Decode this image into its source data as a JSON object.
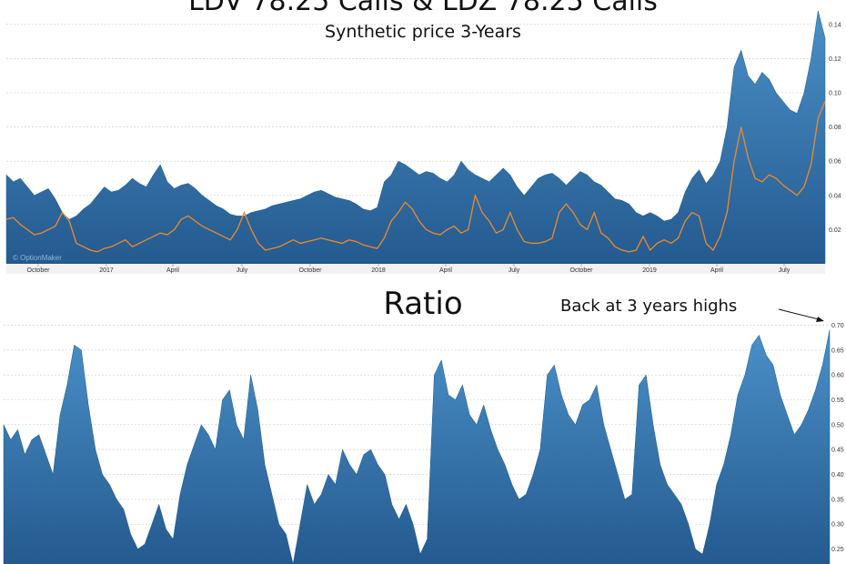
{
  "chart_data": [
    {
      "type": "area",
      "title": "LDV 78.25 Calls & LDZ 78.25 Calls",
      "subtitle": "Synthetic price 3-Years",
      "watermark": "© OptionMaker",
      "x_tick_labels": [
        "October",
        "2017",
        "April",
        "July",
        "October",
        "2018",
        "April",
        "July",
        "October",
        "2019",
        "April",
        "July"
      ],
      "ylim": [
        0,
        0.15
      ],
      "y_ticks": [
        0.02,
        0.04,
        0.06,
        0.08,
        0.1,
        0.12,
        0.14
      ],
      "y_tick_labels": [
        "0.02",
        "0.04",
        "0.06",
        "0.08",
        "0.10",
        "0.12",
        "0.14"
      ],
      "grid": true,
      "colors": {
        "area": "#2f6fa8",
        "line": "#ee8a2a"
      },
      "series": [
        {
          "style": "area",
          "values": [
            0.052,
            0.048,
            0.05,
            0.045,
            0.04,
            0.042,
            0.044,
            0.038,
            0.03,
            0.026,
            0.028,
            0.032,
            0.035,
            0.04,
            0.045,
            0.042,
            0.043,
            0.046,
            0.05,
            0.047,
            0.045,
            0.052,
            0.058,
            0.048,
            0.044,
            0.046,
            0.047,
            0.044,
            0.04,
            0.037,
            0.034,
            0.032,
            0.029,
            0.028,
            0.028,
            0.03,
            0.031,
            0.032,
            0.034,
            0.035,
            0.036,
            0.037,
            0.038,
            0.04,
            0.042,
            0.043,
            0.041,
            0.039,
            0.038,
            0.037,
            0.035,
            0.032,
            0.031,
            0.033,
            0.048,
            0.052,
            0.06,
            0.058,
            0.055,
            0.052,
            0.054,
            0.053,
            0.05,
            0.048,
            0.052,
            0.06,
            0.055,
            0.052,
            0.05,
            0.048,
            0.052,
            0.056,
            0.052,
            0.045,
            0.04,
            0.045,
            0.05,
            0.052,
            0.053,
            0.05,
            0.046,
            0.05,
            0.054,
            0.052,
            0.048,
            0.046,
            0.042,
            0.038,
            0.037,
            0.035,
            0.03,
            0.028,
            0.03,
            0.028,
            0.025,
            0.026,
            0.03,
            0.042,
            0.05,
            0.055,
            0.047,
            0.052,
            0.06,
            0.08,
            0.115,
            0.125,
            0.11,
            0.105,
            0.112,
            0.108,
            0.1,
            0.095,
            0.09,
            0.088,
            0.1,
            0.12,
            0.148,
            0.132
          ]
        },
        {
          "style": "line",
          "values": [
            0.026,
            0.027,
            0.023,
            0.02,
            0.017,
            0.018,
            0.02,
            0.022,
            0.03,
            0.025,
            0.012,
            0.01,
            0.008,
            0.007,
            0.009,
            0.01,
            0.012,
            0.014,
            0.01,
            0.012,
            0.014,
            0.016,
            0.018,
            0.017,
            0.02,
            0.026,
            0.028,
            0.025,
            0.022,
            0.02,
            0.018,
            0.016,
            0.014,
            0.02,
            0.03,
            0.02,
            0.012,
            0.008,
            0.009,
            0.01,
            0.012,
            0.014,
            0.012,
            0.013,
            0.014,
            0.015,
            0.014,
            0.013,
            0.012,
            0.014,
            0.013,
            0.011,
            0.01,
            0.009,
            0.015,
            0.025,
            0.03,
            0.036,
            0.032,
            0.025,
            0.02,
            0.018,
            0.017,
            0.02,
            0.022,
            0.018,
            0.02,
            0.04,
            0.03,
            0.025,
            0.018,
            0.02,
            0.03,
            0.02,
            0.013,
            0.012,
            0.012,
            0.013,
            0.015,
            0.03,
            0.035,
            0.03,
            0.023,
            0.02,
            0.03,
            0.018,
            0.015,
            0.01,
            0.008,
            0.007,
            0.008,
            0.016,
            0.008,
            0.012,
            0.014,
            0.012,
            0.015,
            0.025,
            0.03,
            0.028,
            0.012,
            0.008,
            0.016,
            0.03,
            0.06,
            0.08,
            0.062,
            0.05,
            0.048,
            0.052,
            0.05,
            0.046,
            0.043,
            0.04,
            0.045,
            0.058,
            0.085,
            0.095
          ]
        }
      ]
    },
    {
      "type": "area",
      "title": "Ratio",
      "annotation": "Back at 3 years highs",
      "ylim": [
        0.22,
        0.71
      ],
      "y_ticks": [
        0.25,
        0.3,
        0.35,
        0.4,
        0.45,
        0.5,
        0.55,
        0.6,
        0.65,
        0.7
      ],
      "y_tick_labels": [
        "0.25",
        "0.30",
        "0.35",
        "0.40",
        "0.45",
        "0.50",
        "0.55",
        "0.60",
        "0.65",
        "0.70"
      ],
      "grid": true,
      "colors": {
        "area": "#2f6fa8"
      },
      "series": [
        {
          "style": "area",
          "values": [
            0.5,
            0.47,
            0.49,
            0.44,
            0.47,
            0.48,
            0.44,
            0.4,
            0.52,
            0.58,
            0.66,
            0.65,
            0.54,
            0.45,
            0.4,
            0.38,
            0.35,
            0.33,
            0.28,
            0.25,
            0.26,
            0.3,
            0.34,
            0.29,
            0.27,
            0.36,
            0.42,
            0.46,
            0.5,
            0.48,
            0.45,
            0.55,
            0.57,
            0.5,
            0.47,
            0.6,
            0.53,
            0.42,
            0.36,
            0.3,
            0.28,
            0.22,
            0.3,
            0.38,
            0.34,
            0.36,
            0.4,
            0.38,
            0.45,
            0.42,
            0.4,
            0.44,
            0.45,
            0.42,
            0.4,
            0.34,
            0.31,
            0.34,
            0.3,
            0.24,
            0.27,
            0.6,
            0.63,
            0.56,
            0.55,
            0.58,
            0.52,
            0.5,
            0.54,
            0.49,
            0.45,
            0.42,
            0.38,
            0.35,
            0.36,
            0.4,
            0.45,
            0.6,
            0.62,
            0.56,
            0.52,
            0.5,
            0.54,
            0.55,
            0.58,
            0.5,
            0.45,
            0.4,
            0.35,
            0.36,
            0.58,
            0.6,
            0.5,
            0.42,
            0.38,
            0.36,
            0.34,
            0.3,
            0.25,
            0.24,
            0.3,
            0.38,
            0.42,
            0.48,
            0.56,
            0.6,
            0.66,
            0.68,
            0.64,
            0.62,
            0.56,
            0.52,
            0.48,
            0.5,
            0.53,
            0.57,
            0.62,
            0.69
          ]
        }
      ]
    }
  ]
}
